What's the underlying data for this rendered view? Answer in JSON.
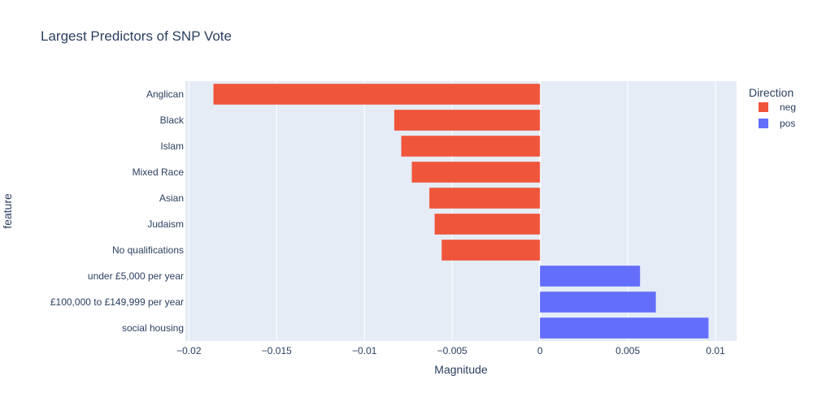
{
  "chart_data": {
    "type": "bar",
    "orientation": "horizontal",
    "title": "Largest Predictors of SNP Vote",
    "xlabel": "Magnitude",
    "ylabel": "feature",
    "xlim": [
      -0.0202,
      0.0112
    ],
    "x_ticks": [
      -0.02,
      -0.015,
      -0.01,
      -0.005,
      0,
      0.005,
      0.01
    ],
    "x_tick_labels": [
      "−0.02",
      "−0.015",
      "−0.01",
      "−0.005",
      "0",
      "0.005",
      "0.01"
    ],
    "grid": true,
    "legend": {
      "title": "Direction",
      "placement": "top-right",
      "entries": [
        {
          "name": "neg",
          "color": "#EF553B"
        },
        {
          "name": "pos",
          "color": "#636EFA"
        }
      ]
    },
    "categories": [
      "Anglican",
      "Black",
      "Islam",
      "Mixed Race",
      "Asian",
      "Judaism",
      "No qualifications",
      "under £5,000 per year",
      "£100,000 to £149,999 per year",
      "social housing"
    ],
    "series": [
      {
        "name": "neg",
        "color": "#EF553B",
        "points": [
          {
            "category": "Anglican",
            "value": -0.0186
          },
          {
            "category": "Black",
            "value": -0.0083
          },
          {
            "category": "Islam",
            "value": -0.0079
          },
          {
            "category": "Mixed Race",
            "value": -0.0073
          },
          {
            "category": "Asian",
            "value": -0.0063
          },
          {
            "category": "Judaism",
            "value": -0.006
          },
          {
            "category": "No qualifications",
            "value": -0.0056
          }
        ]
      },
      {
        "name": "pos",
        "color": "#636EFA",
        "points": [
          {
            "category": "under £5,000 per year",
            "value": 0.0057
          },
          {
            "category": "£100,000 to £149,999 per year",
            "value": 0.0066
          },
          {
            "category": "social housing",
            "value": 0.0096
          }
        ]
      }
    ]
  }
}
